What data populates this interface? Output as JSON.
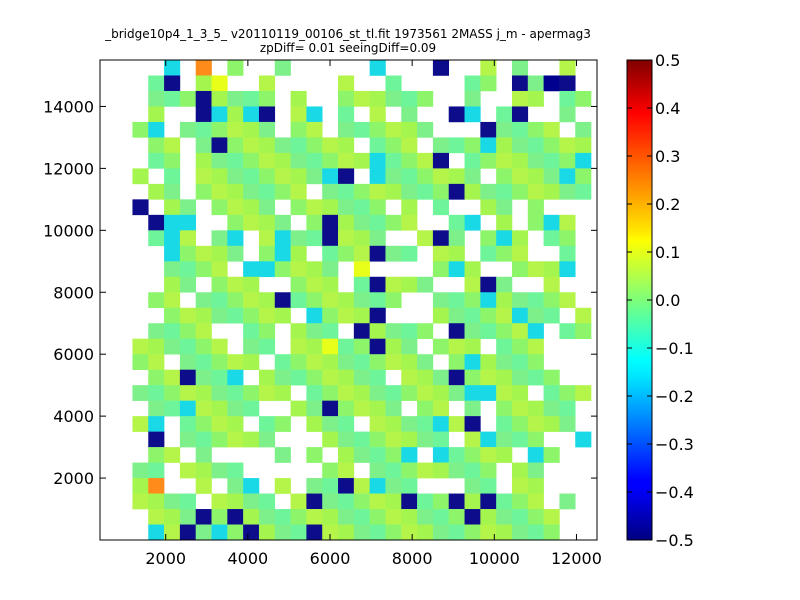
{
  "chart_data": {
    "type": "heatmap",
    "title_line1": "_bridge10p4_1_3_5_ v20110119_00106_st_tl.fit 1973561 2MASS j_m - apermag3",
    "title_line2": "zpDiff= 0.01 seeingDiff=0.09",
    "xlim": [
      400,
      12500
    ],
    "ylim": [
      0,
      15500
    ],
    "x_ticks": [
      2000,
      4000,
      6000,
      8000,
      10000,
      12000
    ],
    "y_ticks": [
      2000,
      4000,
      6000,
      8000,
      10000,
      12000,
      14000
    ],
    "cell_size": [
      385,
      500
    ],
    "x_origin": 420,
    "y_origin": 0,
    "ncols": 31,
    "nrows": 31,
    "colorbar": {
      "min": -0.5,
      "max": 0.5,
      "ticks": [
        0.5,
        0.4,
        0.3,
        0.2,
        0.1,
        0.0,
        -0.1,
        -0.2,
        -0.3,
        -0.4,
        -0.5
      ],
      "tick_labels": [
        "0.5",
        "0.4",
        "0.3",
        "0.2",
        "0.1",
        "0.0",
        "−0.1",
        "−0.2",
        "−0.3",
        "−0.4",
        "−0.5"
      ],
      "colormap": "jet"
    },
    "grid_rows_top_to_bottom": [
      "....c.O.g..g.....c...B..g.g..g.",
      "...gB.gy..g....g..g....gg.BgnB.",
      "...gggBgggg.g..gggggg..g..gg.gg",
      "...g..BcgcB.gc.g.g.g..Bc.gB..g.",
      "..gc.gggggg.gg.gggggg...Bgggg.g",
      "...gg.gBgggggggg.ggg.gggcgggggg",
      "...gg.gggggggggggcgggB.gggggggc",
      "..g.g.ggggggggcB.cgggggg.ggggcg",
      "...gg.ggggggg.ggggggggBgggggggg",
      "..B.gg.gggg.gggggg.g.g..gg.g...",
      "...Bcc..gggg.gBggggg..gc.g.Ccg.",
      "...gcg.gc.gcggBggg..gBg.gcg.gg.",
      "....cgggg.gcg.gggBgg.gg.ggg..g.",
      "....gggg.ccgggg.y....gcg..gggc.",
      "....gg.ggg..ggg.gBggg..gBg..g..",
      "...gg.gggggBggggggg..gggcggggg.",
      "....gggggggg.cgggB...gggggcgg.g",
      "...gggg..gg.ggg.Bgggg.Bggggc.gg",
      "..gggggg.gg.ggyggBgg.ggg.ggg...",
      "..gg.ggggg.gggggggggg.gcgggg...",
      "...ggBggc.gggggggg.gggBgggggg..",
      "..gggggggggg.ggggggggggccgg.ggg",
      "...ggcgggg..ggBgggg.gg.g.ggggg.",
      "..gc.gggg.gg.ggg.ggggcgB.ggggg.",
      "...B.gggggg...gggggggg.gcggg..c",
      "...gg.g....g.g.ggggc.cgggg.cg..",
      "..gg.gggg.....gg.gggggggg.gg...",
      "..gO..g.gc.g.ggBgcgg...gg.gg...",
      "..gggg.gggg.gBgggggBggBgBggg.g.",
      "...gggBgBggggggggggggggBggggg..",
      "...cgBgcgBgggBggggggggggggggg.."
    ]
  }
}
